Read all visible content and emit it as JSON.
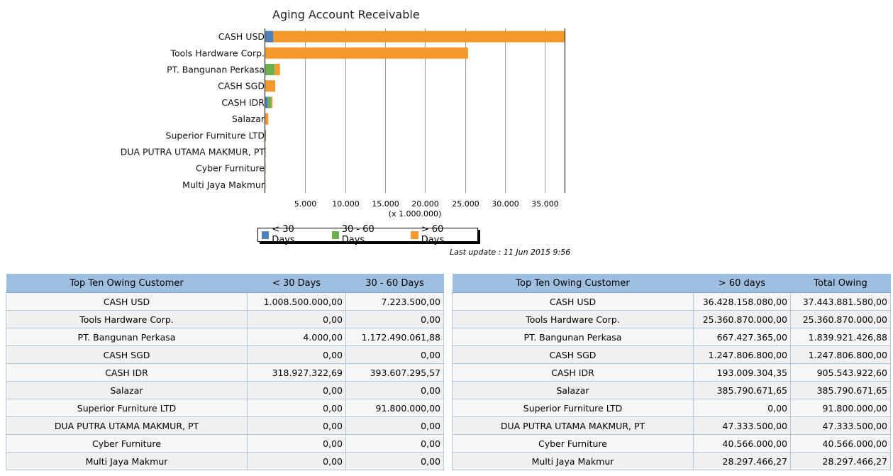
{
  "chart_data": {
    "type": "bar",
    "orientation": "horizontal",
    "stacked": true,
    "title": "Aging Account Receivable",
    "categories": [
      "CASH USD",
      "Tools Hardware Corp.",
      "PT. Bangunan Perkasa",
      "CASH SGD",
      "CASH IDR",
      "Salazar",
      "Superior Furniture LTD",
      "DUA PUTRA UTAMA MAKMUR, PT",
      "Cyber Furniture",
      "Multi Jaya Makmur"
    ],
    "series": [
      {
        "name": "< 30 Days",
        "color": "#4f81bd",
        "values": [
          1008500000,
          0,
          4000,
          0,
          318927322.69,
          0,
          0,
          0,
          0,
          0
        ]
      },
      {
        "name": "30 - 60 Days",
        "color": "#6ab04c",
        "values": [
          7223500,
          0,
          1172490061.88,
          0,
          393607295.57,
          0,
          91800000,
          0,
          0,
          0
        ]
      },
      {
        "name": "> 60 Days",
        "color": "#f39a2b",
        "values": [
          36428158080,
          25360870000,
          667427365,
          1247806800,
          193009304.35,
          385790671.65,
          0,
          47333500,
          40566000,
          28297466.27
        ]
      }
    ],
    "xlim": [
      0,
      37443881580
    ],
    "x_ticks": [
      5000,
      10000,
      15000,
      20000,
      25000,
      30000,
      35000
    ],
    "x_tick_labels": [
      "5.000",
      "10.000",
      "15.000",
      "20.000",
      "25.000",
      "30.000",
      "35.000"
    ],
    "x_unit_label": "(x 1.000.000)",
    "grid": true,
    "legend_position": "bottom"
  },
  "last_update": "Last update : 11 Jun 2015 9:56",
  "left_table": {
    "headers": [
      "Top Ten Owing Customer",
      "< 30 Days",
      "30 - 60 Days"
    ],
    "rows": [
      [
        "CASH USD",
        "1.008.500.000,00",
        "7.223.500,00"
      ],
      [
        "Tools Hardware Corp.",
        "0,00",
        "0,00"
      ],
      [
        "PT. Bangunan Perkasa",
        "4.000,00",
        "1.172.490.061,88"
      ],
      [
        "CASH SGD",
        "0,00",
        "0,00"
      ],
      [
        "CASH IDR",
        "318.927.322,69",
        "393.607.295,57"
      ],
      [
        "Salazar",
        "0,00",
        "0,00"
      ],
      [
        "Superior Furniture LTD",
        "0,00",
        "91.800.000,00"
      ],
      [
        "DUA PUTRA UTAMA MAKMUR, PT",
        "0,00",
        "0,00"
      ],
      [
        "Cyber Furniture",
        "0,00",
        "0,00"
      ],
      [
        "Multi Jaya Makmur",
        "0,00",
        "0,00"
      ]
    ]
  },
  "right_table": {
    "headers": [
      "Top Ten Owing Customer",
      "> 60 days",
      "Total Owing"
    ],
    "rows": [
      [
        "CASH USD",
        "36.428.158.080,00",
        "37.443.881.580,00"
      ],
      [
        "Tools Hardware Corp.",
        "25.360.870.000,00",
        "25.360.870.000,00"
      ],
      [
        "PT. Bangunan Perkasa",
        "667.427.365,00",
        "1.839.921.426,88"
      ],
      [
        "CASH SGD",
        "1.247.806.800,00",
        "1.247.806.800,00"
      ],
      [
        "CASH IDR",
        "193.009.304,35",
        "905.543.922,60"
      ],
      [
        "Salazar",
        "385.790.671,65",
        "385.790.671,65"
      ],
      [
        "Superior Furniture LTD",
        "0,00",
        "91.800.000,00"
      ],
      [
        "DUA PUTRA UTAMA MAKMUR, PT",
        "47.333.500,00",
        "47.333.500,00"
      ],
      [
        "Cyber Furniture",
        "40.566.000,00",
        "40.566.000,00"
      ],
      [
        "Multi Jaya Makmur",
        "28.297.466,27",
        "28.297.466,27"
      ]
    ]
  }
}
